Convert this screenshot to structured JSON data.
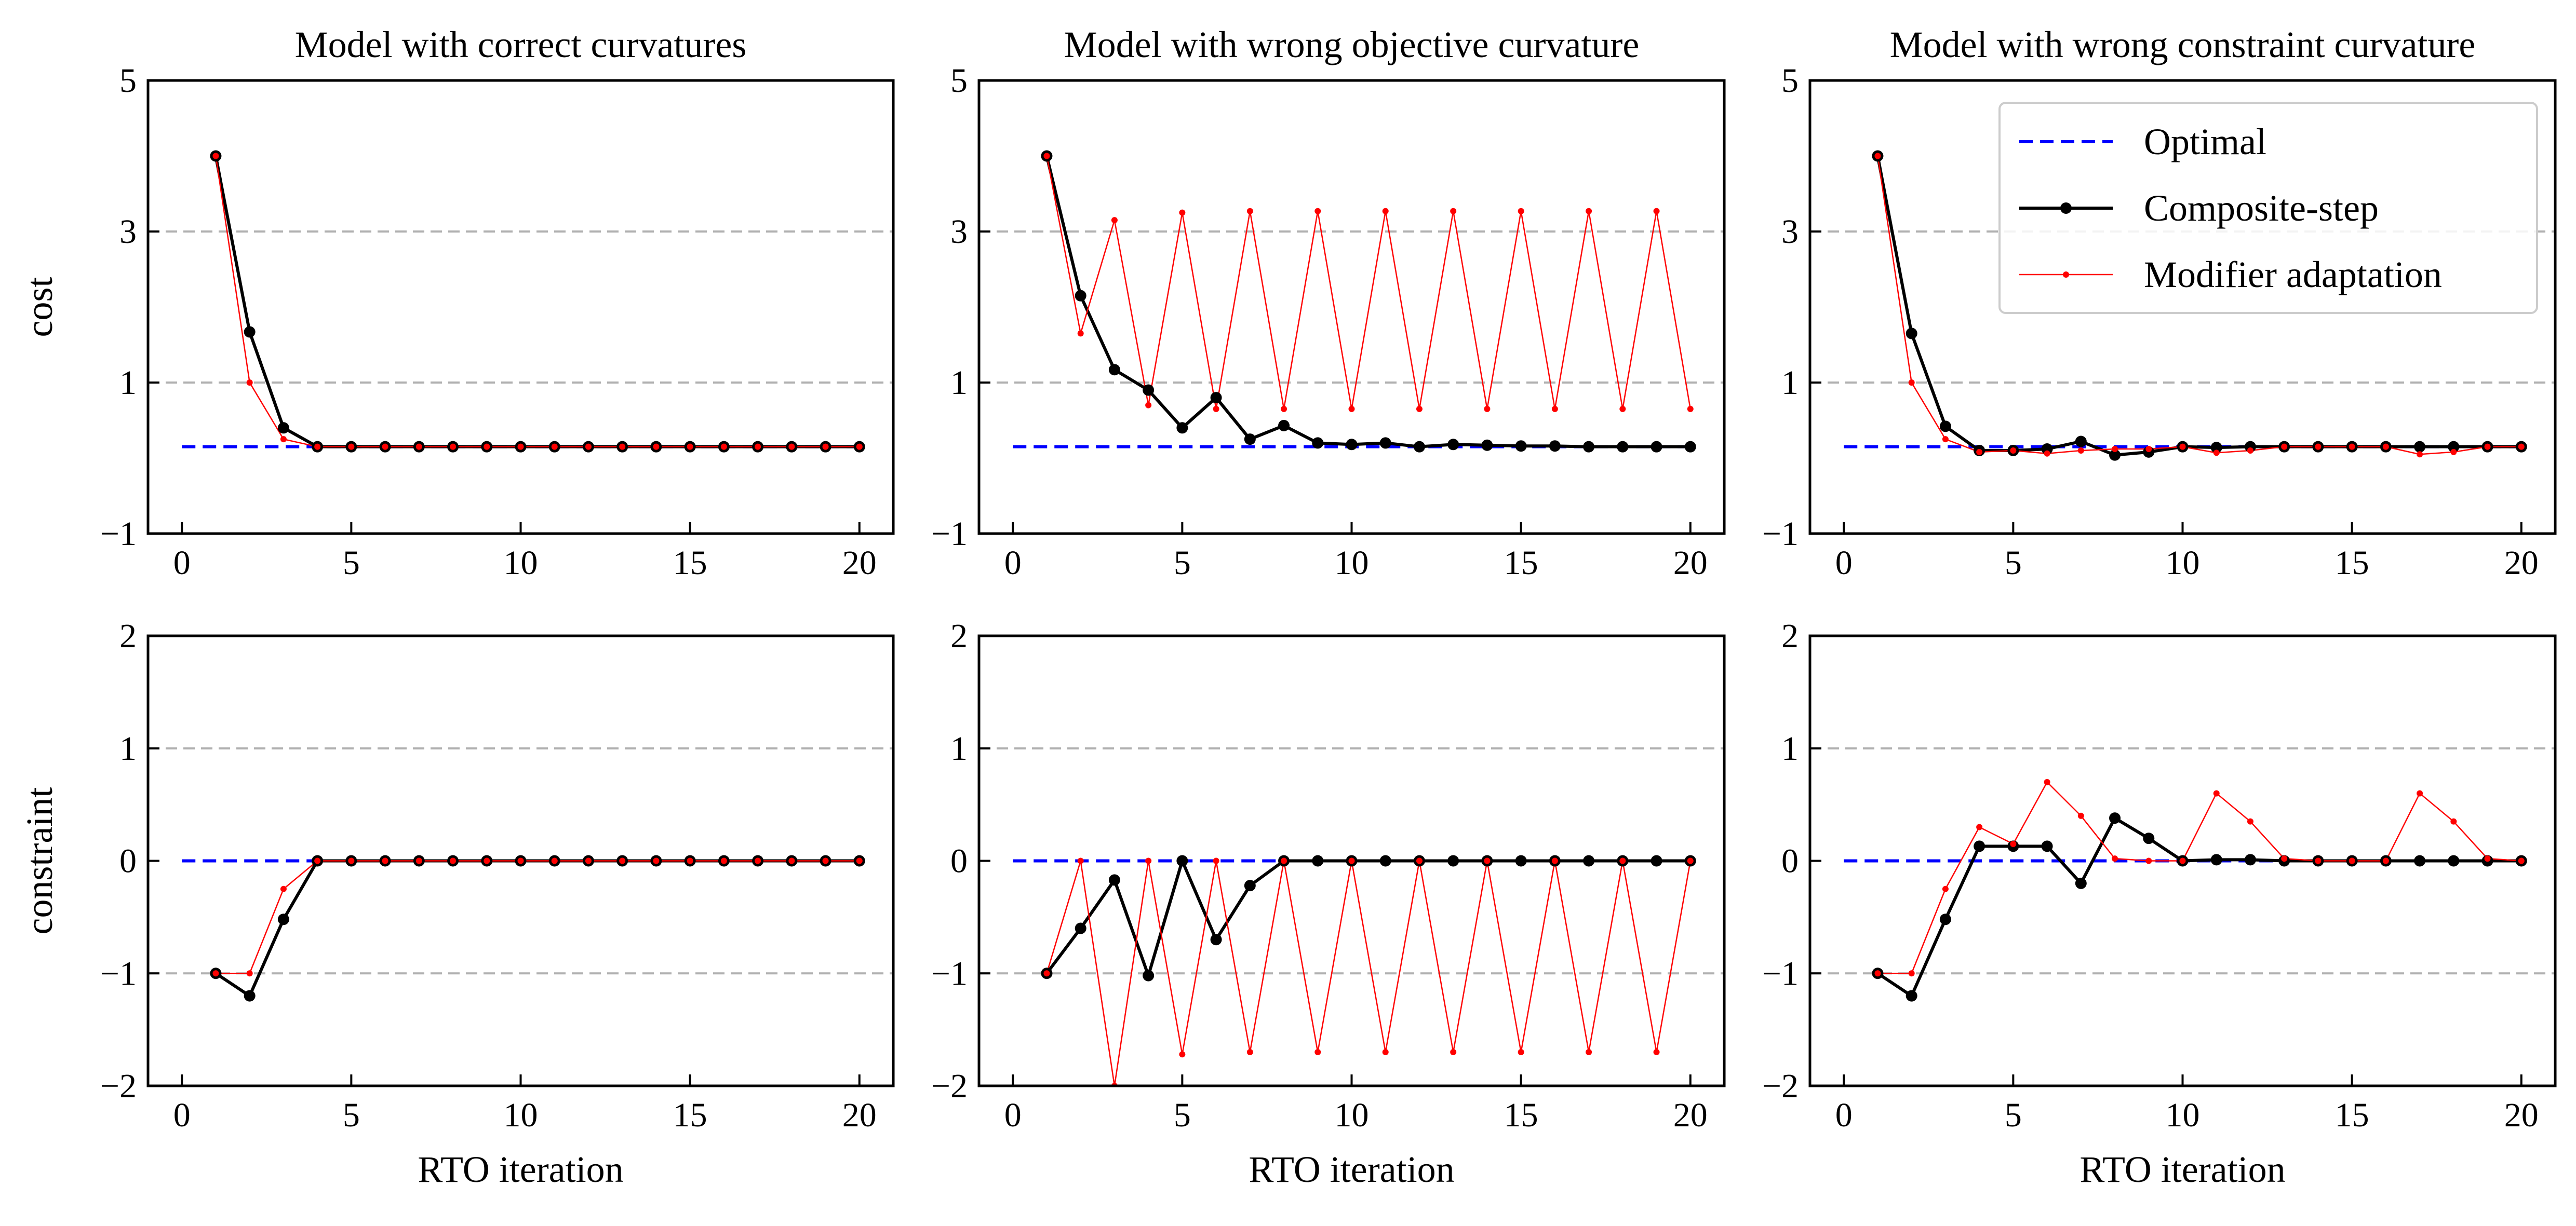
{
  "chart_data": [
    {
      "type": "line",
      "row": "cost",
      "title": "Model with correct curvatures",
      "xlabel": "",
      "ylabel": "cost",
      "xlim": [
        -1,
        21
      ],
      "ylim": [
        -1,
        5
      ],
      "xticks": [
        0,
        5,
        10,
        15,
        20
      ],
      "yticks": [
        -1,
        1,
        3,
        5
      ],
      "grid_y": [
        1,
        3
      ],
      "x": [
        1,
        2,
        3,
        4,
        5,
        6,
        7,
        8,
        9,
        10,
        11,
        12,
        13,
        14,
        15,
        16,
        17,
        18,
        19,
        20
      ],
      "series": [
        {
          "name": "Optimal",
          "style": "dashed",
          "color": "#0000ff",
          "x": [
            0,
            20
          ],
          "values": [
            0.15,
            0.15
          ]
        },
        {
          "name": "Composite-step",
          "style": "solid-markers",
          "color": "#000000",
          "values": [
            4.0,
            1.67,
            0.4,
            0.15,
            0.15,
            0.15,
            0.15,
            0.15,
            0.15,
            0.15,
            0.15,
            0.15,
            0.15,
            0.15,
            0.15,
            0.15,
            0.15,
            0.15,
            0.15,
            0.15
          ]
        },
        {
          "name": "Modifier adaptation",
          "style": "thin-markers",
          "color": "#ff0000",
          "values": [
            4.0,
            1.0,
            0.25,
            0.15,
            0.15,
            0.15,
            0.15,
            0.15,
            0.15,
            0.15,
            0.15,
            0.15,
            0.15,
            0.15,
            0.15,
            0.15,
            0.15,
            0.15,
            0.15,
            0.15
          ]
        }
      ]
    },
    {
      "type": "line",
      "row": "cost",
      "title": "Model with wrong objective curvature",
      "xlabel": "",
      "ylabel": "",
      "xlim": [
        -1,
        21
      ],
      "ylim": [
        -1,
        5
      ],
      "xticks": [
        0,
        5,
        10,
        15,
        20
      ],
      "yticks": [
        -1,
        1,
        3,
        5
      ],
      "grid_y": [
        1,
        3
      ],
      "x": [
        1,
        2,
        3,
        4,
        5,
        6,
        7,
        8,
        9,
        10,
        11,
        12,
        13,
        14,
        15,
        16,
        17,
        18,
        19,
        20
      ],
      "series": [
        {
          "name": "Optimal",
          "style": "dashed",
          "color": "#0000ff",
          "x": [
            0,
            20
          ],
          "values": [
            0.15,
            0.15
          ]
        },
        {
          "name": "Composite-step",
          "style": "solid-markers",
          "color": "#000000",
          "values": [
            4.0,
            2.15,
            1.17,
            0.9,
            0.4,
            0.8,
            0.25,
            0.43,
            0.2,
            0.18,
            0.2,
            0.15,
            0.18,
            0.17,
            0.16,
            0.16,
            0.15,
            0.15,
            0.15,
            0.15
          ]
        },
        {
          "name": "Modifier adaptation",
          "style": "thin-markers",
          "color": "#ff0000",
          "values": [
            4.0,
            1.65,
            3.15,
            0.7,
            3.25,
            0.65,
            3.27,
            0.65,
            3.27,
            0.65,
            3.27,
            0.65,
            3.27,
            0.65,
            3.27,
            0.65,
            3.27,
            0.65,
            3.27,
            0.65
          ]
        }
      ]
    },
    {
      "type": "line",
      "row": "cost",
      "title": "Model with wrong constraint curvature",
      "xlabel": "",
      "ylabel": "",
      "xlim": [
        -1,
        21
      ],
      "ylim": [
        -1,
        5
      ],
      "xticks": [
        0,
        5,
        10,
        15,
        20
      ],
      "yticks": [
        -1,
        1,
        3,
        5
      ],
      "grid_y": [
        1,
        3
      ],
      "legend": "top-right",
      "x": [
        1,
        2,
        3,
        4,
        5,
        6,
        7,
        8,
        9,
        10,
        11,
        12,
        13,
        14,
        15,
        16,
        17,
        18,
        19,
        20
      ],
      "series": [
        {
          "name": "Optimal",
          "style": "dashed",
          "color": "#0000ff",
          "x": [
            0,
            20
          ],
          "values": [
            0.15,
            0.15
          ]
        },
        {
          "name": "Composite-step",
          "style": "solid-markers",
          "color": "#000000",
          "values": [
            4.0,
            1.65,
            0.42,
            0.1,
            0.1,
            0.12,
            0.22,
            0.04,
            0.08,
            0.15,
            0.14,
            0.15,
            0.15,
            0.15,
            0.15,
            0.15,
            0.15,
            0.15,
            0.15,
            0.15
          ]
        },
        {
          "name": "Modifier adaptation",
          "style": "thin-markers",
          "color": "#ff0000",
          "values": [
            4.0,
            1.0,
            0.25,
            0.08,
            0.1,
            0.06,
            0.1,
            0.12,
            0.12,
            0.15,
            0.07,
            0.1,
            0.15,
            0.15,
            0.15,
            0.15,
            0.05,
            0.08,
            0.15,
            0.15
          ]
        }
      ]
    },
    {
      "type": "line",
      "row": "constraint",
      "title": "",
      "xlabel": "RTO iteration",
      "ylabel": "constraint",
      "xlim": [
        -1,
        21
      ],
      "ylim": [
        -2,
        2
      ],
      "xticks": [
        0,
        5,
        10,
        15,
        20
      ],
      "yticks": [
        -2,
        -1,
        0,
        1,
        2
      ],
      "grid_y": [
        -1,
        1
      ],
      "x": [
        1,
        2,
        3,
        4,
        5,
        6,
        7,
        8,
        9,
        10,
        11,
        12,
        13,
        14,
        15,
        16,
        17,
        18,
        19,
        20
      ],
      "series": [
        {
          "name": "Optimal",
          "style": "dashed",
          "color": "#0000ff",
          "x": [
            0,
            20
          ],
          "values": [
            0,
            0
          ]
        },
        {
          "name": "Composite-step",
          "style": "solid-markers",
          "color": "#000000",
          "values": [
            -1.0,
            -1.2,
            -0.52,
            0,
            0,
            0,
            0,
            0,
            0,
            0,
            0,
            0,
            0,
            0,
            0,
            0,
            0,
            0,
            0,
            0
          ]
        },
        {
          "name": "Modifier adaptation",
          "style": "thin-markers",
          "color": "#ff0000",
          "values": [
            -1.0,
            -1.0,
            -0.25,
            0,
            0,
            0,
            0,
            0,
            0,
            0,
            0,
            0,
            0,
            0,
            0,
            0,
            0,
            0,
            0,
            0
          ]
        }
      ]
    },
    {
      "type": "line",
      "row": "constraint",
      "title": "",
      "xlabel": "RTO iteration",
      "ylabel": "",
      "xlim": [
        -1,
        21
      ],
      "ylim": [
        -2,
        2
      ],
      "xticks": [
        0,
        5,
        10,
        15,
        20
      ],
      "yticks": [
        -2,
        -1,
        0,
        1,
        2
      ],
      "grid_y": [
        -1,
        1
      ],
      "x": [
        1,
        2,
        3,
        4,
        5,
        6,
        7,
        8,
        9,
        10,
        11,
        12,
        13,
        14,
        15,
        16,
        17,
        18,
        19,
        20
      ],
      "series": [
        {
          "name": "Optimal",
          "style": "dashed",
          "color": "#0000ff",
          "x": [
            0,
            20
          ],
          "values": [
            0,
            0
          ]
        },
        {
          "name": "Composite-step",
          "style": "solid-markers",
          "color": "#000000",
          "values": [
            -1.0,
            -0.6,
            -0.17,
            -1.02,
            0,
            -0.7,
            -0.22,
            0,
            0,
            0,
            0,
            0,
            0,
            0,
            0,
            0,
            0,
            0,
            0,
            0
          ]
        },
        {
          "name": "Modifier adaptation",
          "style": "thin-markers",
          "color": "#ff0000",
          "values": [
            -1.0,
            0,
            -2.0,
            0,
            -1.72,
            0,
            -1.7,
            0,
            -1.7,
            0,
            -1.7,
            0,
            -1.7,
            0,
            -1.7,
            0,
            -1.7,
            0,
            -1.7,
            0
          ]
        }
      ]
    },
    {
      "type": "line",
      "row": "constraint",
      "title": "",
      "xlabel": "RTO iteration",
      "ylabel": "",
      "xlim": [
        -1,
        21
      ],
      "ylim": [
        -2,
        2
      ],
      "xticks": [
        0,
        5,
        10,
        15,
        20
      ],
      "yticks": [
        -2,
        -1,
        0,
        1,
        2
      ],
      "grid_y": [
        -1,
        1
      ],
      "x": [
        1,
        2,
        3,
        4,
        5,
        6,
        7,
        8,
        9,
        10,
        11,
        12,
        13,
        14,
        15,
        16,
        17,
        18,
        19,
        20
      ],
      "series": [
        {
          "name": "Optimal",
          "style": "dashed",
          "color": "#0000ff",
          "x": [
            0,
            20
          ],
          "values": [
            0,
            0
          ]
        },
        {
          "name": "Composite-step",
          "style": "solid-markers",
          "color": "#000000",
          "values": [
            -1.0,
            -1.2,
            -0.52,
            0.13,
            0.13,
            0.13,
            -0.2,
            0.38,
            0.2,
            0,
            0.01,
            0.01,
            0,
            0,
            0,
            0,
            0,
            0,
            0,
            0
          ]
        },
        {
          "name": "Modifier adaptation",
          "style": "thin-markers",
          "color": "#ff0000",
          "values": [
            -1.0,
            -1.0,
            -0.25,
            0.3,
            0.15,
            0.7,
            0.4,
            0.02,
            0,
            0,
            0.6,
            0.35,
            0.02,
            0,
            0,
            0,
            0.6,
            0.35,
            0.02,
            0
          ]
        }
      ]
    }
  ]
}
